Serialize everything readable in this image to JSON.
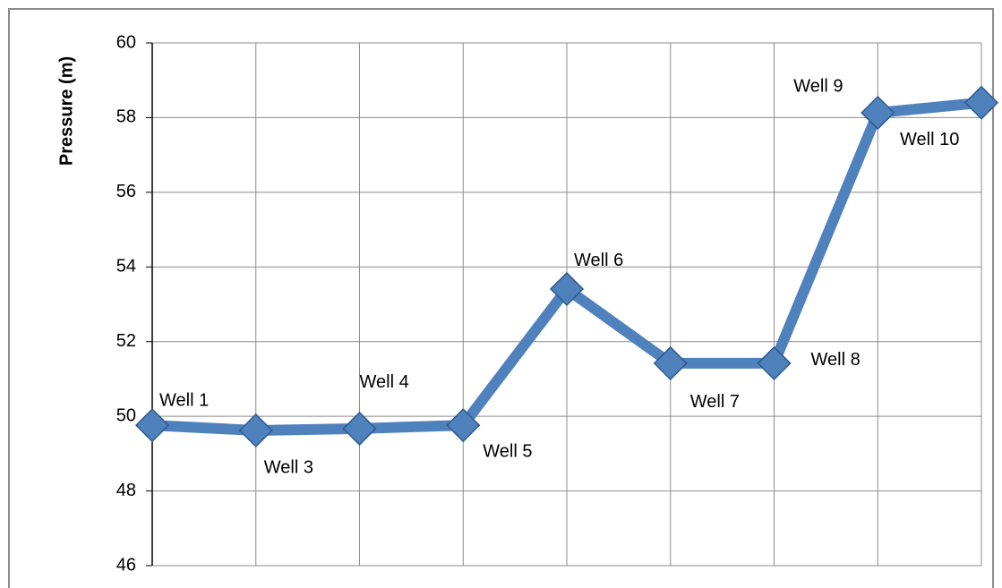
{
  "chart_data": {
    "type": "line",
    "y_label": "Pressure (m)",
    "categories": [
      "Well 1",
      "Well 3",
      "Well 4",
      "Well 5",
      "Well 6",
      "Well 7",
      "Well 8",
      "Well 9",
      "Well 10"
    ],
    "series": [
      {
        "color": "#4f81bd",
        "values": [
          49.76,
          49.62,
          49.67,
          49.76,
          53.41,
          51.42,
          51.42,
          58.13,
          58.4
        ]
      }
    ],
    "ylim": [
      46,
      60
    ],
    "yticks": [
      46,
      48,
      50,
      52,
      54,
      56,
      58,
      60
    ],
    "grid": true
  }
}
